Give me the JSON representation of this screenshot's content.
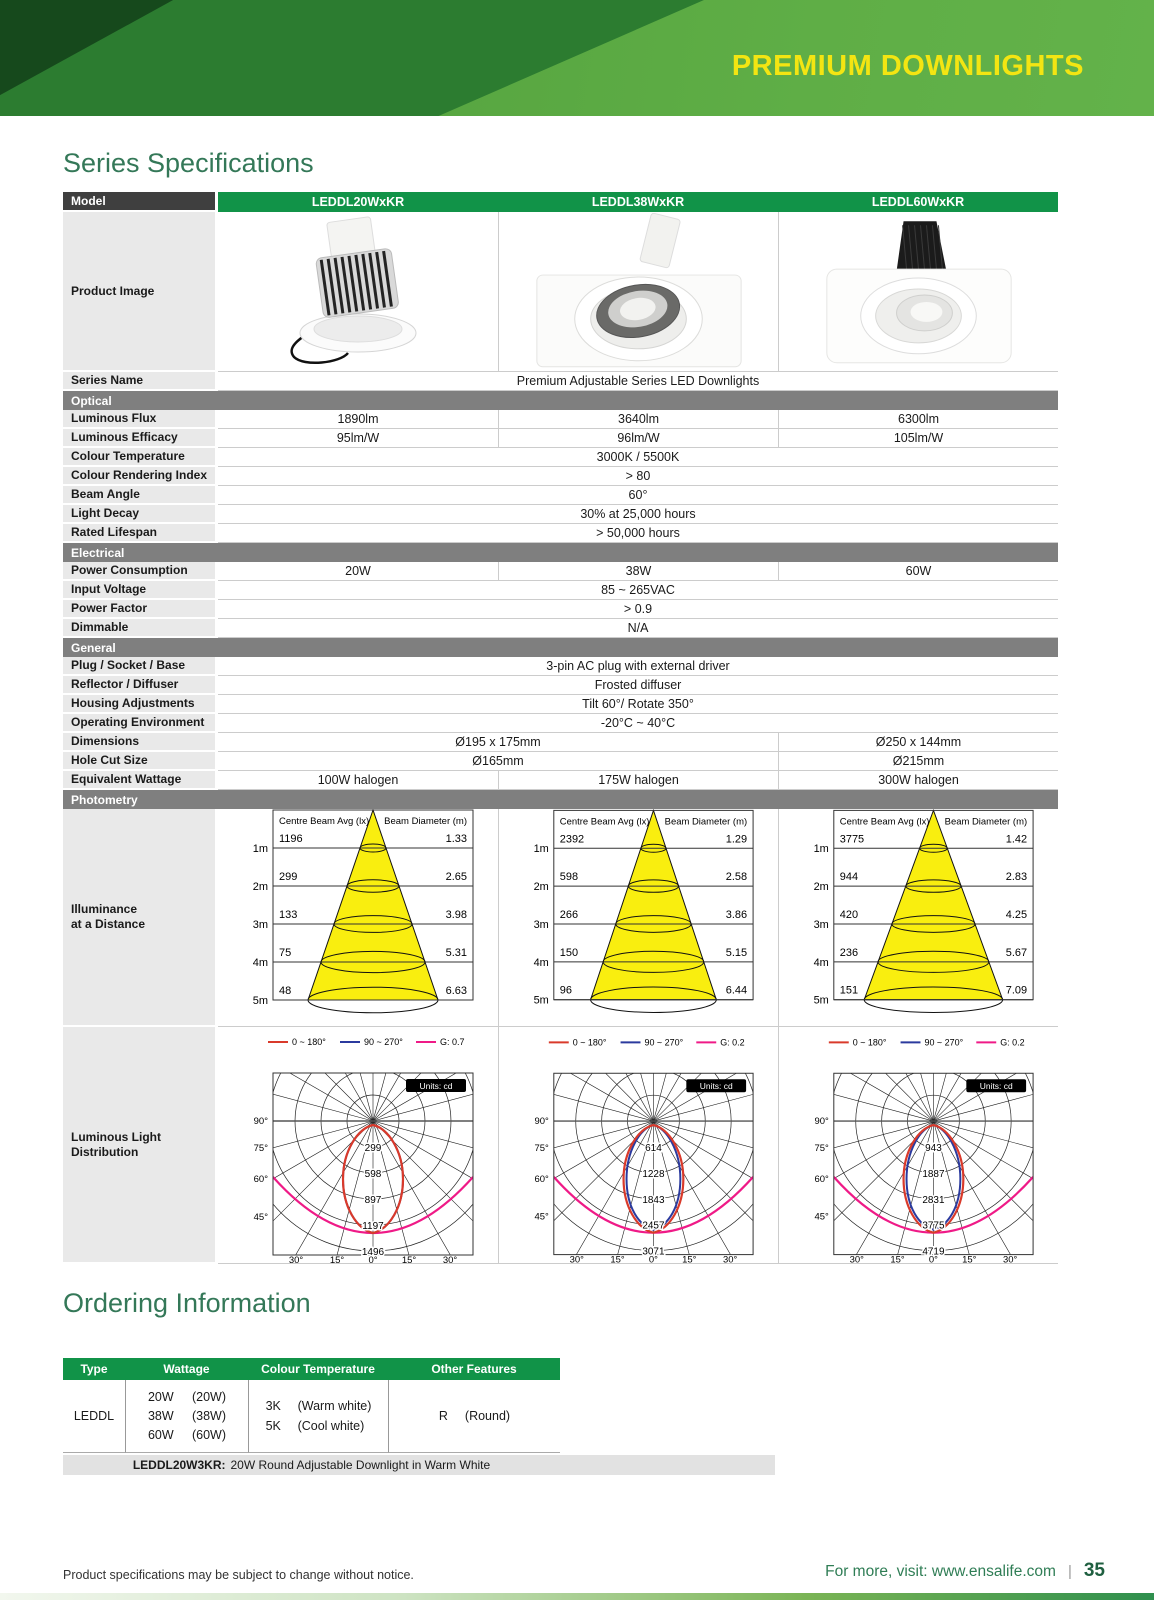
{
  "banner": {
    "title": "PREMIUM DOWNLIGHTS"
  },
  "titles": {
    "series_spec": "Series Specifications",
    "ordering": "Ordering Information"
  },
  "colors": {
    "accent_green": "#119348",
    "section_gray": "#7f7f7f",
    "model_gray": "#3f3f3f",
    "banner_yellow": "#f3e512",
    "cone_yellow": "#f9ee0f",
    "curve_red": "#d93a2b",
    "curve_blue": "#2b3a9e",
    "curve_magenta": "#ef1a87"
  },
  "spec_table": {
    "model_label": "Model",
    "models": [
      "LEDDL20WxKR",
      "LEDDL38WxKR",
      "LEDDL60WxKR"
    ],
    "rows": [
      {
        "type": "model"
      },
      {
        "type": "image",
        "label": "Product Image"
      },
      {
        "type": "span",
        "label": "Series Name",
        "value": "Premium Adjustable Series LED Downlights"
      },
      {
        "type": "section",
        "label": "Optical"
      },
      {
        "type": "cols",
        "label": "Luminous Flux",
        "values": [
          "1890lm",
          "3640lm",
          "6300lm"
        ]
      },
      {
        "type": "cols",
        "label": "Luminous Efficacy",
        "values": [
          "95lm/W",
          "96lm/W",
          "105lm/W"
        ]
      },
      {
        "type": "span",
        "label": "Colour Temperature",
        "value": "3000K / 5500K"
      },
      {
        "type": "span",
        "label": "Colour Rendering Index",
        "value": "> 80"
      },
      {
        "type": "span",
        "label": "Beam Angle",
        "value": "60°"
      },
      {
        "type": "span",
        "label": "Light Decay",
        "value": "30% at 25,000 hours"
      },
      {
        "type": "span",
        "label": "Rated Lifespan",
        "value": "> 50,000 hours"
      },
      {
        "type": "section",
        "label": "Electrical"
      },
      {
        "type": "cols",
        "label": "Power Consumption",
        "values": [
          "20W",
          "38W",
          "60W"
        ]
      },
      {
        "type": "span",
        "label": "Input Voltage",
        "value": "85 ~ 265VAC"
      },
      {
        "type": "span",
        "label": "Power Factor",
        "value": "> 0.9"
      },
      {
        "type": "span",
        "label": "Dimmable",
        "value": "N/A"
      },
      {
        "type": "section",
        "label": "General"
      },
      {
        "type": "span",
        "label": "Plug / Socket / Base",
        "value": "3-pin AC plug with external driver"
      },
      {
        "type": "span",
        "label": "Reflector / Diffuser",
        "value": "Frosted diffuser"
      },
      {
        "type": "span",
        "label": "Housing Adjustments",
        "value": "Tilt 60°/ Rotate 350°"
      },
      {
        "type": "span",
        "label": "Operating Environment",
        "value": "-20°C ~ 40°C"
      },
      {
        "type": "span2",
        "label": "Dimensions",
        "values": [
          "Ø195 x 175mm",
          "Ø250 x 144mm"
        ]
      },
      {
        "type": "span2",
        "label": "Hole Cut Size",
        "values": [
          "Ø165mm",
          "Ø215mm"
        ]
      },
      {
        "type": "cols",
        "label": "Equivalent Wattage",
        "values": [
          "100W halogen",
          "175W halogen",
          "300W halogen"
        ]
      },
      {
        "type": "section",
        "label": "Photometry"
      },
      {
        "type": "illuminance",
        "label": "Illuminance\nat a Distance"
      },
      {
        "type": "polar",
        "label": "Luminous Light\nDistribution"
      }
    ]
  },
  "chart_data": {
    "illuminance": {
      "type": "cone-diagram",
      "col_headers": [
        "Centre Beam Avg (lx)",
        "Beam Diameter (m)"
      ],
      "distances": [
        "1m",
        "2m",
        "3m",
        "4m",
        "5m"
      ],
      "charts": [
        {
          "model": "LEDDL20WxKR",
          "lux": [
            1196,
            299,
            133,
            75,
            48
          ],
          "beam_diameter_m": [
            1.33,
            2.65,
            3.98,
            5.31,
            6.63
          ]
        },
        {
          "model": "LEDDL38WxKR",
          "lux": [
            2392,
            598,
            266,
            150,
            96
          ],
          "beam_diameter_m": [
            1.29,
            2.58,
            3.86,
            5.15,
            6.44
          ]
        },
        {
          "model": "LEDDL60WxKR",
          "lux": [
            3775,
            944,
            420,
            236,
            151
          ],
          "beam_diameter_m": [
            1.42,
            2.83,
            4.25,
            5.67,
            7.09
          ]
        }
      ]
    },
    "distribution": {
      "type": "polar",
      "units": "Units: cd",
      "g_color": "#ef1a87",
      "legend": [
        {
          "label": "0 ~ 180°",
          "color": "#d93a2b"
        },
        {
          "label": "90 ~ 270°",
          "color": "#2b3a9e"
        }
      ],
      "angle_labels_left": [
        "90°",
        "75°",
        "60°",
        "45°"
      ],
      "angle_labels_bottom": [
        "30°",
        "15°",
        "0°",
        "15°",
        "30°"
      ],
      "charts": [
        {
          "model": "LEDDL20WxKR",
          "g_label": "G: 0.7",
          "ring_values": [
            299,
            598,
            897,
            1197,
            1496
          ]
        },
        {
          "model": "LEDDL38WxKR",
          "g_label": "G: 0.2",
          "ring_values": [
            614,
            1228,
            1843,
            2457,
            3071
          ]
        },
        {
          "model": "LEDDL60WxKR",
          "g_label": "G: 0.2",
          "ring_values": [
            943,
            1887,
            2831,
            3775,
            4719
          ]
        }
      ]
    }
  },
  "ordering": {
    "headers": [
      "Type",
      "Wattage",
      "Colour Temperature",
      "Other Features"
    ],
    "type": "LEDDL",
    "wattage": [
      [
        "20W",
        "(20W)"
      ],
      [
        "38W",
        "(38W)"
      ],
      [
        "60W",
        "(60W)"
      ]
    ],
    "colour_temperature": [
      [
        "3K",
        "(Warm white)"
      ],
      [
        "5K",
        "(Cool white)"
      ]
    ],
    "other_features": [
      "R",
      "(Round)"
    ],
    "example_code": "LEDDL20W3KR:",
    "example_desc": "20W Round Adjustable Downlight in Warm White"
  },
  "footer": {
    "note": "Product specifications may be subject to change without notice.",
    "visit": "For more, visit: www.ensalife.com",
    "separator": "|",
    "page": "35"
  }
}
